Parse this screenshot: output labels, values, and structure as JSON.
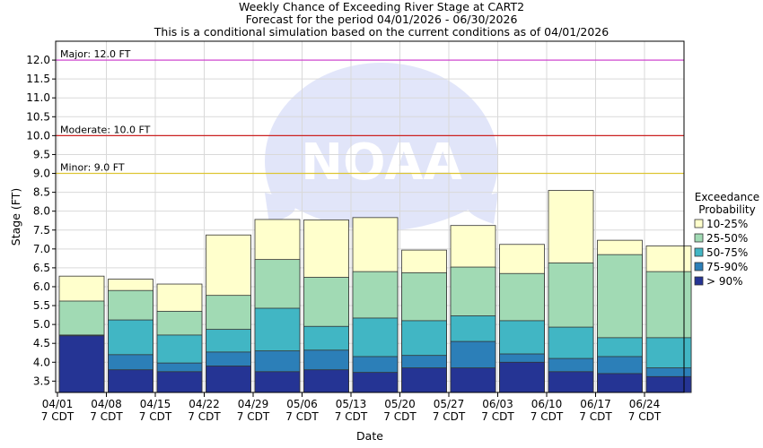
{
  "chart_data": {
    "type": "bar",
    "title": [
      "Weekly Chance of Exceeding River Stage at CART2",
      "Forecast for the period 04/01/2026 - 06/30/2026",
      "This is a conditional simulation based on the current conditions as of 04/01/2026"
    ],
    "xlabel": "Date",
    "ylabel": "Stage (FT)",
    "ylim": [
      3.2,
      12.5
    ],
    "yticks": [
      3.5,
      4.0,
      4.5,
      5.0,
      5.5,
      6.0,
      6.5,
      7.0,
      7.5,
      8.0,
      8.5,
      9.0,
      9.5,
      10.0,
      10.5,
      11.0,
      11.5,
      12.0
    ],
    "x_tick_labels": [
      [
        "04/01",
        "7 CDT"
      ],
      [
        "04/08",
        "7 CDT"
      ],
      [
        "04/15",
        "7 CDT"
      ],
      [
        "04/22",
        "7 CDT"
      ],
      [
        "04/29",
        "7 CDT"
      ],
      [
        "05/06",
        "7 CDT"
      ],
      [
        "05/13",
        "7 CDT"
      ],
      [
        "05/20",
        "7 CDT"
      ],
      [
        "05/27",
        "7 CDT"
      ],
      [
        "06/03",
        "7 CDT"
      ],
      [
        "06/10",
        "7 CDT"
      ],
      [
        "06/17",
        "7 CDT"
      ],
      [
        "06/24",
        "7 CDT"
      ]
    ],
    "grid": true,
    "legend": {
      "title": [
        "Exceedance",
        "Probability"
      ],
      "placement": "right",
      "entries": [
        "10-25%",
        "25-50%",
        "50-75%",
        "75-90%",
        "> 90%"
      ]
    },
    "colors": {
      "10-25%": "#ffffcc",
      "25-50%": "#a1dab4",
      "50-75%": "#41b6c4",
      "75-90%": "#2c7fb8",
      "> 90%": "#253494"
    },
    "flood_stages": [
      {
        "label": "Major: 12.0 FT",
        "value": 12.0,
        "color": "#cc33cc"
      },
      {
        "label": "Moderate: 10.0 FT",
        "value": 10.0,
        "color": "#cc2222"
      },
      {
        "label": "Minor: 9.0 FT",
        "value": 9.0,
        "color": "#ddc533"
      }
    ],
    "series": [
      {
        "name": "> 90%",
        "values": [
          4.7,
          3.8,
          3.75,
          3.9,
          3.75,
          3.8,
          3.73,
          3.85,
          3.85,
          4.0,
          3.75,
          3.7,
          3.62
        ]
      },
      {
        "name": "75-90%",
        "values": [
          4.72,
          4.2,
          3.98,
          4.27,
          4.3,
          4.32,
          4.15,
          4.18,
          4.55,
          4.22,
          4.1,
          4.15,
          3.85
        ]
      },
      {
        "name": "50-75%",
        "values": [
          4.72,
          5.12,
          4.72,
          4.87,
          5.43,
          4.95,
          5.17,
          5.1,
          5.23,
          5.1,
          4.93,
          4.65,
          4.65
        ]
      },
      {
        "name": "25-50%",
        "values": [
          5.62,
          5.9,
          5.35,
          5.77,
          6.72,
          6.25,
          6.4,
          6.37,
          6.52,
          6.35,
          6.63,
          6.85,
          6.4
        ]
      },
      {
        "name": "10-25%",
        "values": [
          6.28,
          6.2,
          6.07,
          7.37,
          7.78,
          7.77,
          7.83,
          6.97,
          7.62,
          7.12,
          8.55,
          7.23,
          7.08
        ]
      }
    ]
  }
}
